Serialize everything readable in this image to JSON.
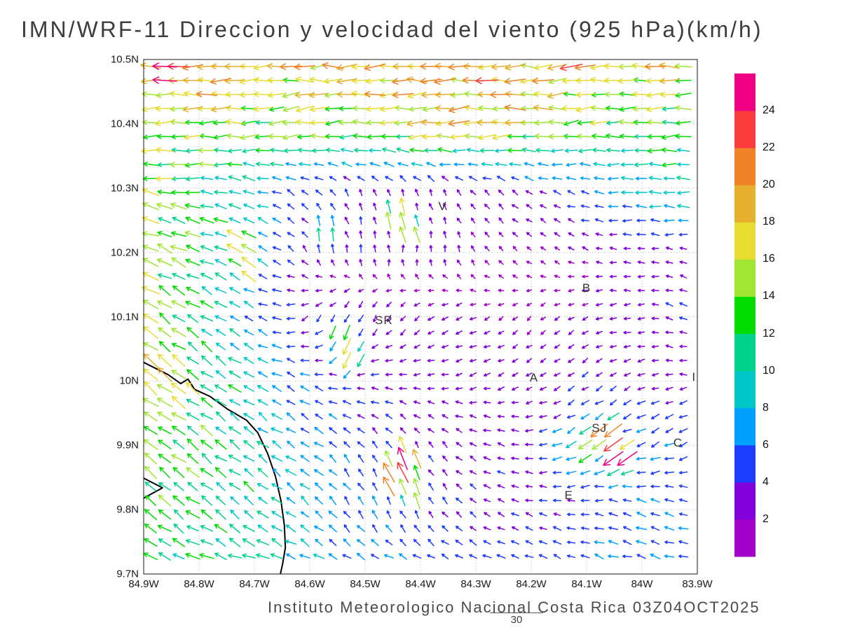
{
  "title": "IMN/WRF-11 Direccion y velocidad del viento (925 hPa)(km/h)",
  "caption": "Instituto Meteorologico Nacional Costa Rica 03Z04OCT2025",
  "frame_number": "30",
  "axes": {
    "lat_tick_labels": [
      "9.7N",
      "9.8N",
      "9.9N",
      "10N",
      "10.1N",
      "10.2N",
      "10.3N",
      "10.4N",
      "10.5N"
    ],
    "lat_values": [
      9.7,
      9.8,
      9.9,
      10.0,
      10.1,
      10.2,
      10.3,
      10.4,
      10.5
    ],
    "lon_tick_labels": [
      "84.9W",
      "84.8W",
      "84.7W",
      "84.6W",
      "84.5W",
      "84.4W",
      "84.3W",
      "84.2W",
      "84.1W",
      "84W",
      "83.9W"
    ],
    "lon_values": [
      84.9,
      84.8,
      84.7,
      84.6,
      84.5,
      84.4,
      84.3,
      84.2,
      84.1,
      84.0,
      83.9
    ]
  },
  "colorbar": {
    "levels": [
      2,
      4,
      6,
      8,
      10,
      12,
      14,
      16,
      18,
      20,
      22,
      24
    ],
    "colors": [
      "#a000c8",
      "#8200dc",
      "#1e3cff",
      "#00a0ff",
      "#00c8c8",
      "#00d28c",
      "#00dc00",
      "#a0e632",
      "#e6dc32",
      "#e6af2d",
      "#f08228",
      "#fa3c3c",
      "#f00082"
    ]
  },
  "map": {
    "cities": [
      {
        "label": "V",
        "lon_w": 84.36,
        "lat_n": 10.271
      },
      {
        "label": "B",
        "lon_w": 84.1,
        "lat_n": 10.144
      },
      {
        "label": "SR",
        "lon_w": 84.466,
        "lat_n": 10.094
      },
      {
        "label": "A",
        "lon_w": 84.195,
        "lat_n": 10.005
      },
      {
        "label": "SJ",
        "lon_w": 84.077,
        "lat_n": 9.926
      },
      {
        "label": "C",
        "lon_w": 83.935,
        "lat_n": 9.904
      },
      {
        "label": "E",
        "lon_w": 84.132,
        "lat_n": 9.822
      },
      {
        "label": "I",
        "lon_w": 83.906,
        "lat_n": 10.006
      }
    ],
    "coastline": [
      [
        84.9,
        10.029
      ],
      [
        84.856,
        10.01
      ],
      [
        84.833,
        9.996
      ],
      [
        84.82,
        10.003
      ],
      [
        84.808,
        9.987
      ],
      [
        84.78,
        9.976
      ],
      [
        84.748,
        9.956
      ],
      [
        84.714,
        9.939
      ],
      [
        84.694,
        9.92
      ],
      [
        84.676,
        9.887
      ],
      [
        84.662,
        9.852
      ],
      [
        84.652,
        9.814
      ],
      [
        84.646,
        9.776
      ],
      [
        84.644,
        9.741
      ],
      [
        84.649,
        9.716
      ],
      [
        84.653,
        9.7
      ]
    ],
    "coast_spike": [
      [
        84.9,
        9.849
      ],
      [
        84.866,
        9.834
      ],
      [
        84.9,
        9.818
      ]
    ]
  },
  "chart_data": {
    "type": "vector_field",
    "title": "IMN/WRF-11 Direccion y velocidad del viento (925 hPa)(km/h)",
    "units": "km/h",
    "level": "925 hPa",
    "lon_w_range": [
      84.9,
      83.9
    ],
    "lat_n_range": [
      9.7,
      10.5
    ],
    "grid_on": true,
    "legend_position": "right-colorbar",
    "speed_bin_edges": [
      2,
      4,
      6,
      8,
      10,
      12,
      14,
      16,
      18,
      20,
      22,
      24
    ],
    "control_grid": {
      "lons_w": [
        84.9,
        84.8,
        84.7,
        84.6,
        84.5,
        84.4,
        84.3,
        84.2,
        84.1,
        84.0,
        83.9
      ],
      "lats_n": [
        9.7,
        9.8,
        9.9,
        10.0,
        10.1,
        10.2,
        10.3,
        10.4,
        10.5
      ],
      "u_east_kmh": [
        [
          -12,
          -11,
          -10,
          -8,
          -6,
          -5,
          -5,
          -5,
          -6,
          -7,
          -6
        ],
        [
          -10,
          -9,
          -8,
          -5,
          -3,
          -2,
          -3,
          -3,
          -4,
          -6,
          -5
        ],
        [
          -11,
          -10,
          -8,
          -6,
          -3,
          -2,
          -3,
          -4,
          -8,
          -6,
          -5
        ],
        [
          -15,
          -11,
          -8,
          -5,
          -4,
          -3,
          -3,
          -2,
          -3,
          -3,
          -3
        ],
        [
          -12,
          -9,
          -6,
          -3,
          -2,
          -2,
          -2,
          -1,
          -2,
          -3,
          -4
        ],
        [
          -15,
          -11,
          -7,
          -2,
          0,
          0,
          -1,
          -1,
          -2,
          -3,
          -3
        ],
        [
          -14,
          -12,
          -8,
          -3,
          -1,
          -1,
          -2,
          -3,
          -5,
          -9,
          -10
        ],
        [
          -16,
          -15,
          -14,
          -15,
          -16,
          -17,
          -18,
          -16,
          -14,
          -13,
          -12
        ],
        [
          -24,
          -20,
          -19,
          -18,
          -18,
          -19,
          -20,
          -20,
          -19,
          -18,
          -16
        ]
      ],
      "v_north_kmh": [
        [
          4,
          4,
          3,
          3,
          2,
          2,
          2,
          2,
          2,
          2,
          2
        ],
        [
          8,
          7,
          6,
          5,
          6,
          4,
          2,
          1,
          1,
          2,
          1
        ],
        [
          8,
          7,
          6,
          4,
          4,
          3,
          2,
          0,
          -5,
          -3,
          -2
        ],
        [
          11,
          8,
          5,
          2,
          0,
          0,
          -1,
          -1,
          -2,
          -1,
          0
        ],
        [
          9,
          6,
          3,
          -3,
          -4,
          -2,
          -1,
          -1,
          -1,
          0,
          2
        ],
        [
          7,
          4,
          3,
          3,
          4,
          3,
          2,
          1,
          1,
          0,
          1
        ],
        [
          2,
          1,
          2,
          3,
          3,
          3,
          2,
          2,
          1,
          0,
          0
        ],
        [
          -1,
          -1,
          -1,
          -1,
          -1,
          -1,
          -1,
          -1,
          -1,
          -1,
          -1
        ],
        [
          0,
          0,
          0,
          0,
          0,
          0,
          0,
          0,
          0,
          0,
          0
        ]
      ]
    },
    "local_features_lonW_latN_u_v_radius": [
      [
        84.43,
        9.875,
        -9,
        23,
        0.035
      ],
      [
        84.45,
        9.85,
        -11,
        19,
        0.03
      ],
      [
        84.41,
        9.83,
        -5,
        15,
        0.03
      ],
      [
        84.06,
        9.918,
        -17,
        -13,
        0.032
      ],
      [
        84.04,
        9.882,
        -20,
        -14,
        0.03
      ],
      [
        84.1,
        9.9,
        -12,
        -8,
        0.03
      ],
      [
        84.86,
        10.487,
        -26,
        1,
        0.03
      ],
      [
        84.44,
        10.256,
        -4,
        17,
        0.03
      ],
      [
        84.42,
        10.232,
        -5,
        14,
        0.028
      ],
      [
        84.73,
        10.215,
        -15,
        8,
        0.033
      ],
      [
        84.71,
        10.178,
        -13,
        10,
        0.03
      ],
      [
        84.54,
        10.07,
        -5,
        -13,
        0.03
      ],
      [
        84.53,
        10.038,
        -7,
        -15,
        0.032
      ],
      [
        84.57,
        10.23,
        -1,
        11,
        0.03
      ]
    ],
    "arrow_grid_hint": {
      "cols": 39,
      "rows": 36
    }
  }
}
